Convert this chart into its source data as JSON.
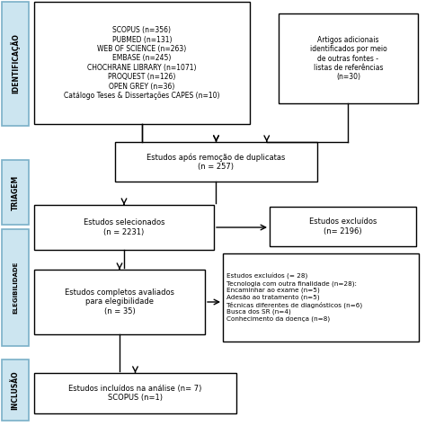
{
  "background": "#ffffff",
  "sidebar_color": "#cce5f0",
  "sidebar_edge": "#7ab0c8",
  "box1_text": "SCOPUS (n=356)\nPUBMED (n=131)\nWEB OF SCIENCE (n=263)\nEMBASE (n=245)\nCHOCHRANE LIBRARY (n=1071)\nPROQUEST (n=126)\nOPEN GREY (n=36)\nCatálogo Teses & Dissertações CAPES (n=10)",
  "box2_text": "Artigos adicionais\nidentificados por meio\nde outras fontes -\nlistas de referências\n(n=30)",
  "box3_text": "Estudos após remoção de duplicatas\n(n = 257)",
  "box4_text": "Estudos selecionados\n(n = 2231)",
  "box5_text": "Estudos excluídos\n(n= 2196)",
  "box6_text": "Estudos completos avaliados\npara elegibilidade\n(n = 35)",
  "box7_text": "Estudos excluídos (= 28)\nTecnologia com outra finalidade (n=28):\nEncaminhar ao exame (n=5)\nAdesão ao tratamento (n=5)\nTécnicas diferentes de diagnósticos (n=6)\nBusca dos SR (n=4)\nConhecimento da doença (n=8)",
  "box8_text": "Estudos incluídos na análise (n= 7)\nSCOPUS (n=1)",
  "label1": "IDENTIFICAÇÃO",
  "label2": "TRIAGEM",
  "label3": "ELEGIBILIDADE",
  "label4": "INCLUSÃO"
}
